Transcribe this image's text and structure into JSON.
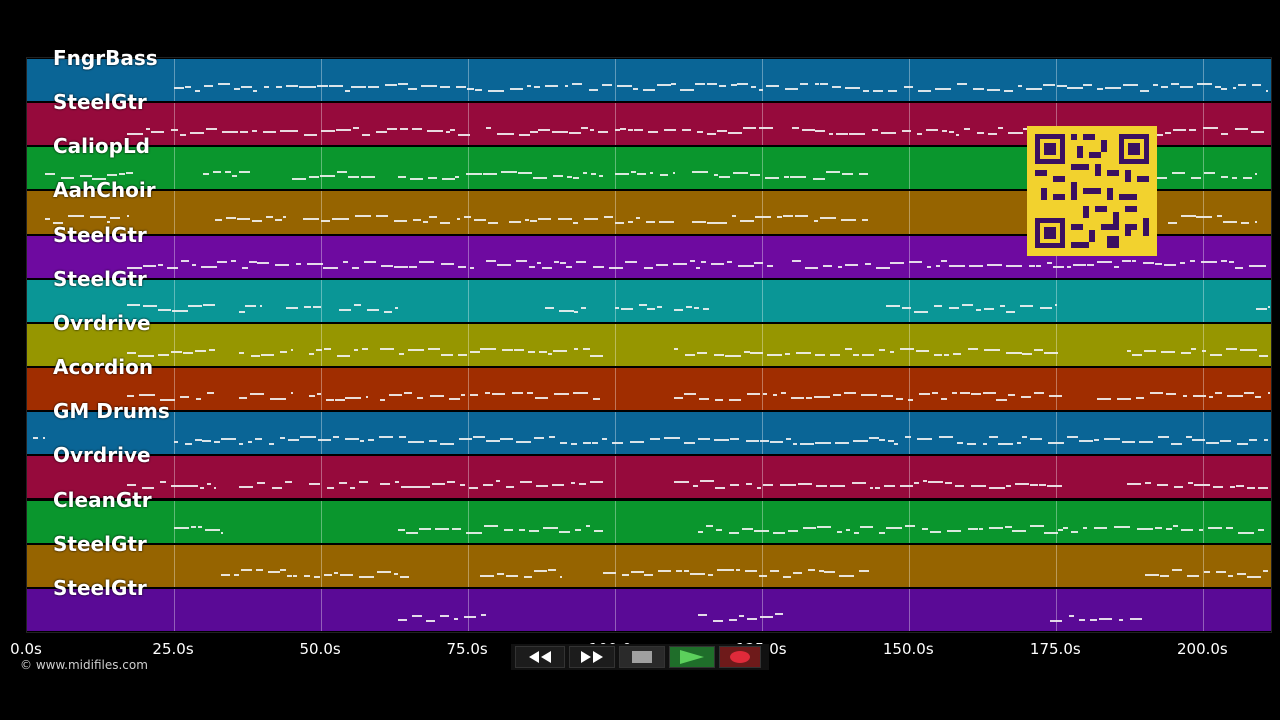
{
  "tracks": [
    {
      "name": "FngrBass",
      "color": "#0a6596"
    },
    {
      "name": "SteelGtr",
      "color": "#960a3c"
    },
    {
      "name": "CaliopLd",
      "color": "#0a962d"
    },
    {
      "name": "AahChoir",
      "color": "#966400"
    },
    {
      "name": "SteelGtr",
      "color": "#6e0aa0"
    },
    {
      "name": "SteelGtr",
      "color": "#0a9696"
    },
    {
      "name": "Ovrdrive",
      "color": "#969600"
    },
    {
      "name": "Acordion",
      "color": "#a02d00"
    },
    {
      "name": "GM Drums",
      "color": "#0a6596"
    },
    {
      "name": "Ovrdrive",
      "color": "#960a3c"
    },
    {
      "name": "CleanGtr",
      "color": "#0a962d"
    },
    {
      "name": "SteelGtr",
      "color": "#966400"
    },
    {
      "name": "SteelGtr",
      "color": "#5a0a96"
    }
  ],
  "timeline": {
    "max_seconds": 211.5,
    "ticks": [
      "0.0s",
      "25.0s",
      "50.0s",
      "75.0s",
      "100.0s",
      "125.0s",
      "150.0s",
      "175.0s",
      "200.0s"
    ],
    "tick_values": [
      0,
      25,
      50,
      75,
      100,
      125,
      150,
      175,
      200
    ]
  },
  "copyright": "© www.midifiles.com",
  "controls": [
    {
      "name": "rewind-button",
      "icon": "rewind-icon"
    },
    {
      "name": "fast-forward-button",
      "icon": "fast-forward-icon"
    },
    {
      "name": "stop-button",
      "icon": "stop-icon"
    },
    {
      "name": "play-button",
      "icon": "play-icon"
    },
    {
      "name": "record-button",
      "icon": "record-icon"
    }
  ],
  "qr_icon": "qr-code-icon"
}
